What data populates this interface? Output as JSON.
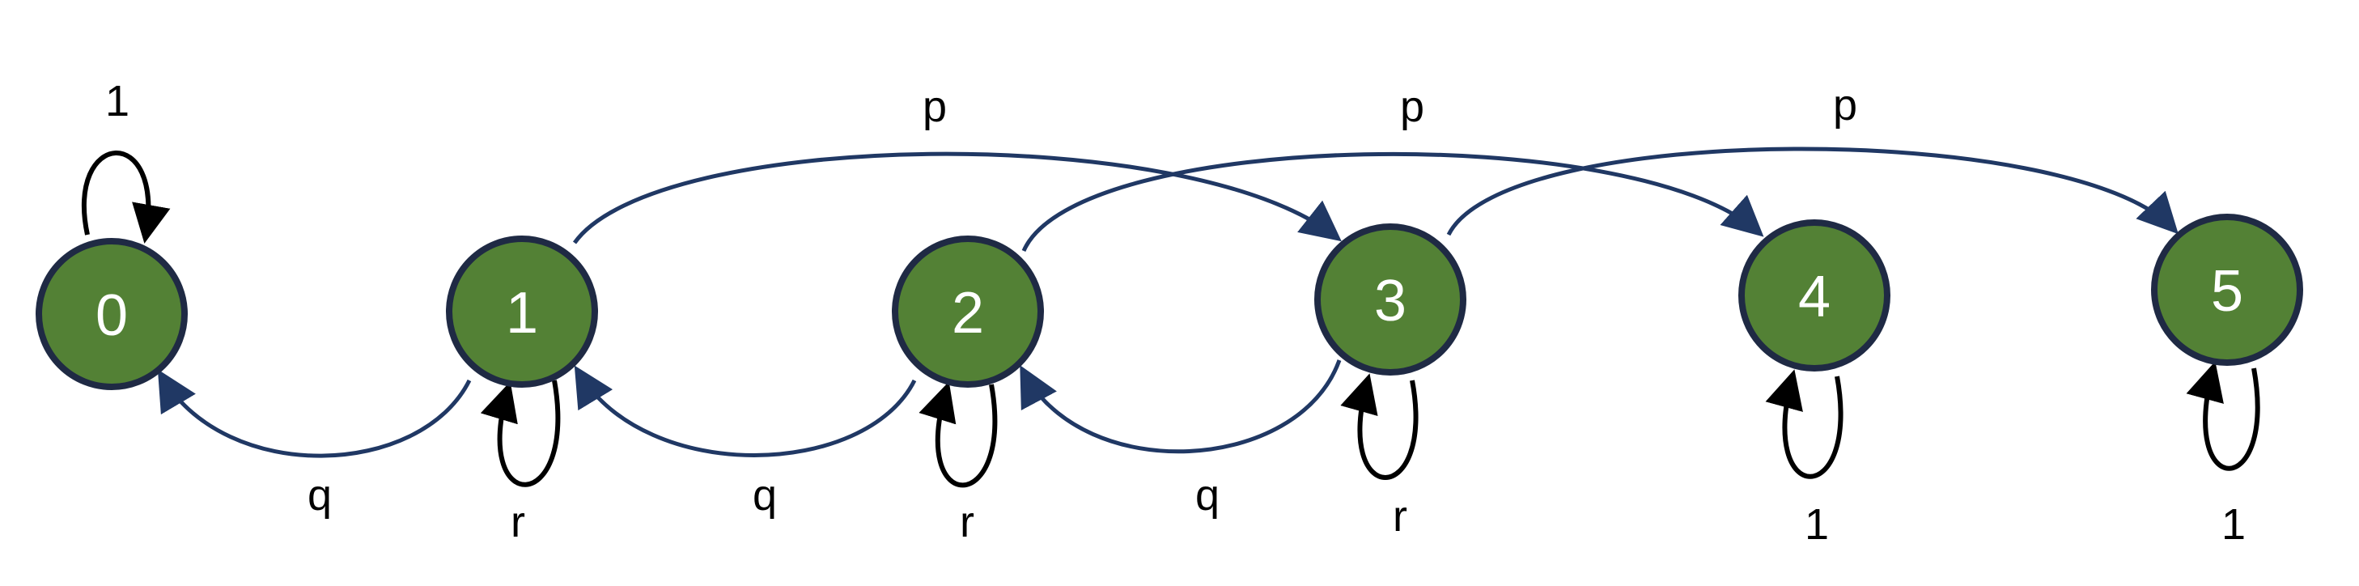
{
  "nodes": [
    {
      "id": "0",
      "label": "0"
    },
    {
      "id": "1",
      "label": "1"
    },
    {
      "id": "2",
      "label": "2"
    },
    {
      "id": "3",
      "label": "3"
    },
    {
      "id": "4",
      "label": "4"
    },
    {
      "id": "5",
      "label": "5"
    }
  ],
  "edges": [
    {
      "from": "0",
      "to": "0",
      "label": "1"
    },
    {
      "from": "1",
      "to": "1",
      "label": "r"
    },
    {
      "from": "2",
      "to": "2",
      "label": "r"
    },
    {
      "from": "3",
      "to": "3",
      "label": "r"
    },
    {
      "from": "4",
      "to": "4",
      "label": "1"
    },
    {
      "from": "5",
      "to": "5",
      "label": "1"
    },
    {
      "from": "1",
      "to": "0",
      "label": "q"
    },
    {
      "from": "2",
      "to": "1",
      "label": "q"
    },
    {
      "from": "3",
      "to": "2",
      "label": "q"
    },
    {
      "from": "1",
      "to": "3",
      "label": "p"
    },
    {
      "from": "2",
      "to": "4",
      "label": "p"
    },
    {
      "from": "3",
      "to": "5",
      "label": "p"
    }
  ],
  "colors": {
    "node_fill": "#538135",
    "node_stroke": "#1f2a44",
    "edge_blue": "#203864",
    "edge_black": "#000000"
  }
}
